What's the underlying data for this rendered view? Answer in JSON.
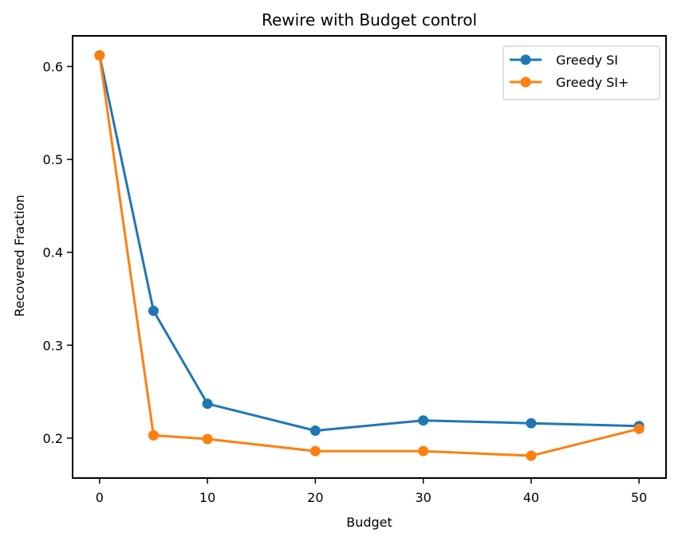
{
  "chart_data": {
    "type": "line",
    "title": "Rewire with Budget control",
    "xlabel": "Budget",
    "ylabel": "Recovered Fraction",
    "x": [
      0,
      5,
      10,
      20,
      30,
      40,
      50
    ],
    "xlim": [
      -2.5,
      52.5
    ],
    "ylim": [
      0.157,
      0.633
    ],
    "xticks": [
      0,
      10,
      20,
      30,
      40,
      50
    ],
    "yticks": [
      0.2,
      0.3,
      0.4,
      0.5,
      0.6
    ],
    "grid": false,
    "legend_position": "top-right",
    "series": [
      {
        "name": "Greedy SI",
        "color": "#1f77b4",
        "values": [
          0.612,
          0.337,
          0.237,
          0.208,
          0.219,
          0.216,
          0.213
        ]
      },
      {
        "name": "Greedy SI+",
        "color": "#ff7f0e",
        "values": [
          0.612,
          0.203,
          0.199,
          0.186,
          0.186,
          0.181,
          0.21
        ]
      }
    ]
  }
}
